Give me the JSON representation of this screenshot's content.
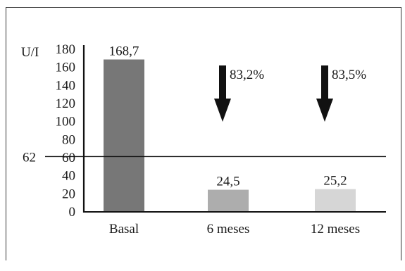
{
  "chart_data": {
    "type": "bar",
    "title": "",
    "xlabel": "",
    "ylabel": "U/I",
    "ylim": [
      0,
      180
    ],
    "yticks": [
      0,
      20,
      40,
      60,
      80,
      100,
      120,
      140,
      160,
      180
    ],
    "categories": [
      "Basal",
      "6 meses",
      "12 meses"
    ],
    "values": [
      168.7,
      24.5,
      25.2
    ],
    "value_labels": [
      "168,7",
      "24,5",
      "25,2"
    ],
    "bar_colors": [
      "#777777",
      "#adadad",
      "#d6d6d6"
    ],
    "reference_line": {
      "value": 62,
      "label": "62"
    },
    "annotations": [
      {
        "between": [
          "Basal",
          "6 meses"
        ],
        "label": "83,2%",
        "icon": "down-arrow-icon"
      },
      {
        "between": [
          "6 meses",
          "12 meses"
        ],
        "label": "83,5%",
        "icon": "down-arrow-icon"
      }
    ],
    "grid": false,
    "legend": "none"
  }
}
